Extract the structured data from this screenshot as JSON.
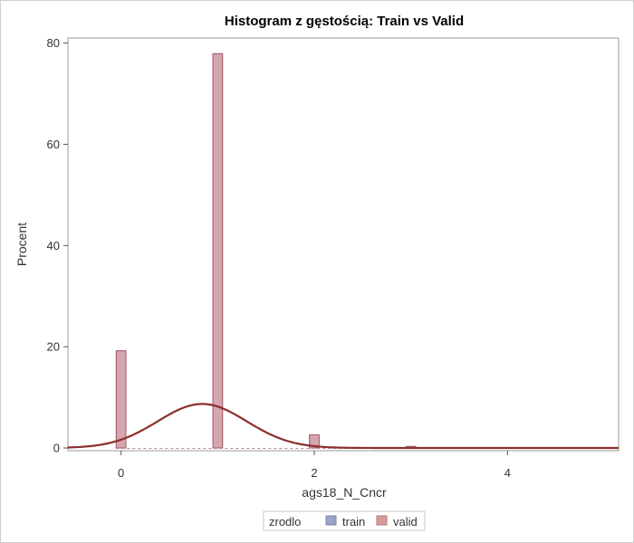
{
  "chart_data": {
    "type": "bar",
    "title": "Histogram z gęstością: Train vs Valid",
    "xlabel": "ags18_N_Cncr",
    "ylabel": "Procent",
    "xlim": [
      -0.55,
      5.15
    ],
    "ylim": [
      0,
      81
    ],
    "xticks": [
      0,
      2,
      4
    ],
    "yticks": [
      0,
      20,
      40,
      60,
      80
    ],
    "bin_width": 0.1,
    "series": [
      {
        "name": "train",
        "color": "#9aa3c8",
        "x": [
          0,
          1,
          2,
          3
        ],
        "values": [
          19.2,
          77.9,
          2.6,
          0.3
        ]
      },
      {
        "name": "valid",
        "color": "#d79b9b",
        "x": [
          0,
          1,
          2,
          3
        ],
        "values": [
          19.2,
          77.9,
          2.6,
          0.3
        ]
      }
    ],
    "density": {
      "type": "normal",
      "color": "#8b2f2f",
      "mean": 0.84,
      "sd": 0.46,
      "peak": 8.7
    },
    "legend": {
      "title": "zrodlo",
      "placement": "bottom",
      "items": [
        "train",
        "valid"
      ]
    }
  }
}
